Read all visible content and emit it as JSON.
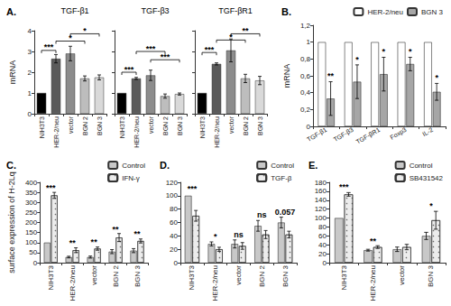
{
  "chart_data": [
    {
      "type": "bar",
      "title": "A.",
      "ylabel": "mRNA",
      "ylim": [
        0,
        4
      ],
      "yticks": [
        0,
        1,
        2,
        3,
        4
      ],
      "grid": false,
      "categories": [
        "NIH3T3",
        "HER-2/neu",
        "vector",
        "BGN 2",
        "BGN 3"
      ],
      "colors": [
        "#000000",
        "#5a5a5a",
        "#8c8c8c",
        "#bdbdbd",
        "#d9d9d9"
      ],
      "subplots": [
        {
          "title": "TGF-β1",
          "values": [
            1,
            2.65,
            2.9,
            1.7,
            1.75
          ],
          "errors": [
            0,
            0.2,
            0.35,
            0.12,
            0.12
          ],
          "brackets": [
            {
              "from": 0,
              "to": 1,
              "y": 3.05,
              "label": "***"
            },
            {
              "from": 1,
              "to": 3,
              "y": 3.5,
              "label": "*"
            },
            {
              "from": 2,
              "to": 4,
              "y": 3.85,
              "label": "*"
            }
          ]
        },
        {
          "title": "TGF-β3",
          "values": [
            1,
            1.7,
            1.85,
            0.85,
            0.95
          ],
          "errors": [
            0,
            0.05,
            0.25,
            0.1,
            0.05
          ],
          "brackets": [
            {
              "from": 0,
              "to": 1,
              "y": 2.0,
              "label": "***"
            },
            {
              "from": 2,
              "to": 4,
              "y": 2.6,
              "label": "***"
            },
            {
              "from": 1,
              "to": 3,
              "y": 3.0,
              "label": "***"
            }
          ]
        },
        {
          "title": "TGF-βR1",
          "values": [
            1,
            2.4,
            3.05,
            1.7,
            1.6
          ],
          "errors": [
            0,
            0.05,
            0.55,
            0.2,
            0.2
          ],
          "brackets": [
            {
              "from": 0,
              "to": 1,
              "y": 2.95,
              "label": "***"
            },
            {
              "from": 1,
              "to": 3,
              "y": 3.55,
              "label": "*"
            },
            {
              "from": 2,
              "to": 4,
              "y": 3.85,
              "label": "**"
            }
          ]
        }
      ]
    },
    {
      "type": "bar",
      "title": "B.",
      "ylabel": "mRNA",
      "ylim": [
        0,
        1.2
      ],
      "yticks": [
        0,
        {
          "value": 0.2,
          "label": "0,2"
        },
        {
          "value": 0.4,
          "label": "0,4"
        },
        {
          "value": 0.6,
          "label": "0,6"
        },
        {
          "value": 0.8,
          "label": "0,8"
        },
        1,
        {
          "value": 1.2,
          "label": "1,2"
        }
      ],
      "grid": false,
      "legend": "top-right",
      "categories": [
        "TGF-β1",
        "TGF-β3",
        "TGF-βR1",
        "Foxp3",
        "IL-2"
      ],
      "series": [
        {
          "name": "HER-2/neu",
          "color": "#ffffff",
          "values": [
            1,
            1,
            1,
            1,
            1
          ],
          "errors": [
            0,
            0,
            0,
            0,
            0
          ]
        },
        {
          "name": "BGN 3",
          "color": "#a6a6a6",
          "values": [
            0.33,
            0.53,
            0.62,
            0.74,
            0.41
          ],
          "errors": [
            0.2,
            0.2,
            0.2,
            0.08,
            0.1
          ],
          "significance": [
            {
              "label": "**",
              "y": 0.55
            },
            {
              "label": "*",
              "y": 0.75
            },
            {
              "label": "*",
              "y": 0.84
            },
            {
              "label": "*",
              "y": 0.84
            },
            {
              "label": "*",
              "y": 0.53
            }
          ]
        }
      ]
    },
    {
      "type": "bar",
      "title": "C.",
      "ylabel": "surface expression of H-2Lq",
      "ylim": [
        0,
        400
      ],
      "yticks": [
        0,
        50,
        100,
        150,
        200,
        250,
        300,
        350,
        400
      ],
      "grid": false,
      "legend": "top-right",
      "categories": [
        "NIH3T3",
        "HER-2/neu",
        "vector",
        "BGN 2",
        "BGN 3"
      ],
      "series": [
        {
          "name": "Control",
          "color": "#c8c8c8",
          "values": [
            100,
            28,
            28,
            55,
            60
          ],
          "errors": [
            0,
            4,
            5,
            10,
            10
          ]
        },
        {
          "name": "IFN-γ",
          "color": "#ececec",
          "values": [
            335,
            62,
            70,
            125,
            108
          ],
          "errors": [
            15,
            12,
            8,
            20,
            10
          ]
        }
      ],
      "significance": [
        {
          "label": "***",
          "y": 355
        },
        {
          "label": "**",
          "y": 78
        },
        {
          "label": "**",
          "y": 82
        },
        {
          "label": "**",
          "y": 148
        },
        {
          "label": "**",
          "y": 122
        }
      ]
    },
    {
      "type": "bar",
      "title": "D.",
      "ylim": [
        0,
        120
      ],
      "yticks": [
        0,
        20,
        40,
        60,
        80,
        100,
        120
      ],
      "grid": false,
      "legend": "top-right",
      "categories": [
        "NIH3T3",
        "HER-2/neu",
        "vector",
        "BGN 2",
        "BGN 3"
      ],
      "series": [
        {
          "name": "Control",
          "color": "#c8c8c8",
          "values": [
            100,
            28,
            28,
            55,
            60
          ],
          "errors": [
            0,
            3,
            6,
            8,
            8
          ]
        },
        {
          "name": "TGF-β",
          "color": "#ececec",
          "values": [
            70,
            20,
            25,
            42,
            42
          ],
          "errors": [
            8,
            3,
            5,
            6,
            5
          ]
        }
      ],
      "significance": [
        {
          "label": "***",
          "y": 104
        },
        {
          "label": "*",
          "y": 33
        },
        {
          "label": "ns",
          "y": 36
        },
        {
          "label": "ns",
          "y": 65
        },
        {
          "label": "0.057",
          "y": 70
        }
      ]
    },
    {
      "type": "bar",
      "title": "E.",
      "ylim": [
        0,
        180
      ],
      "yticks": [
        0,
        20,
        40,
        60,
        80,
        100,
        120,
        140,
        160,
        180
      ],
      "grid": false,
      "legend": "top-right",
      "categories": [
        "NIH3T3",
        "HER-2/neu",
        "vector",
        "BGN 3"
      ],
      "series": [
        {
          "name": "Control",
          "color": "#c8c8c8",
          "values": [
            100,
            28,
            30,
            60
          ],
          "errors": [
            0,
            2,
            5,
            8
          ]
        },
        {
          "name": "SB431542",
          "color": "#ececec",
          "values": [
            153,
            35,
            35,
            95
          ],
          "errors": [
            4,
            3,
            6,
            20
          ]
        }
      ],
      "significance": [
        {
          "label": "***",
          "y": 160
        },
        {
          "label": "**",
          "y": 40
        },
        null,
        {
          "label": "*",
          "y": 118
        }
      ]
    }
  ]
}
